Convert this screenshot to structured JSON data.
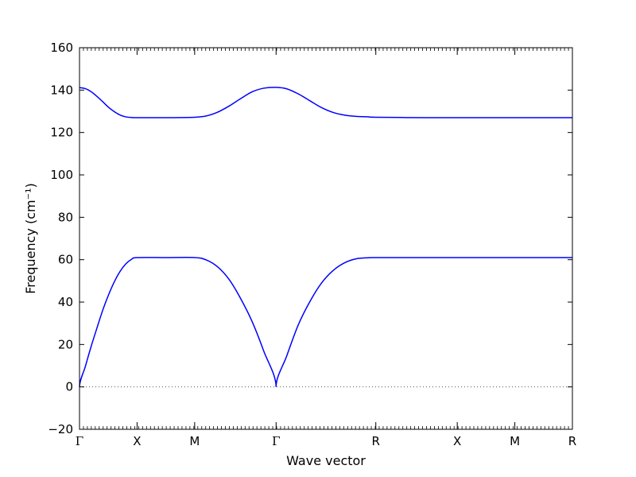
{
  "chart_data": {
    "type": "line",
    "xlabel": "Wave vector",
    "ylabel": "Frequency (cm⁻¹)",
    "ylim": [
      -20,
      160
    ],
    "y_ticks": [
      -20,
      0,
      20,
      40,
      60,
      80,
      100,
      120,
      140,
      160
    ],
    "x_ticks": [
      {
        "label": "Γ",
        "x": 0.0
      },
      {
        "label": "X",
        "x": 0.5
      },
      {
        "label": "M",
        "x": 1.0
      },
      {
        "label": "Γ",
        "x": 1.7071
      },
      {
        "label": "R",
        "x": 2.5731
      },
      {
        "label": "X",
        "x": 3.2802
      },
      {
        "label": "M",
        "x": 3.7802
      },
      {
        "label": "R",
        "x": 4.2802
      }
    ],
    "zero_line": true,
    "grid": false,
    "line_color": "#0000ff",
    "series": [
      {
        "x": [
          0.0,
          0.05,
          0.1,
          0.15,
          0.2,
          0.25,
          0.3,
          0.35,
          0.4,
          0.45,
          0.5,
          0.75,
          1.0,
          1.1,
          1.2,
          1.3,
          1.4,
          1.5,
          1.6,
          1.7071,
          1.8,
          1.9,
          2.0,
          2.1,
          2.2,
          2.3,
          2.4,
          2.5,
          2.5731,
          3.0,
          3.2802,
          3.5,
          3.7802,
          4.0,
          4.2802
        ],
        "values": [
          0,
          9.5,
          18.9,
          27.5,
          35.9,
          43.1,
          49.3,
          54.3,
          57.9,
          60.1,
          61.0,
          61.0,
          61.0,
          59.9,
          56.6,
          50.6,
          41.6,
          30.7,
          16.9,
          0,
          14.7,
          29.3,
          40.2,
          48.9,
          54.8,
          58.5,
          60.4,
          60.9,
          61.0,
          61.0,
          61.0,
          61.0,
          61.0,
          61.0,
          61.0
        ]
      },
      {
        "x": [
          0.0,
          0.05,
          0.1,
          0.15,
          0.2,
          0.25,
          0.3,
          0.35,
          0.4,
          0.45,
          0.5,
          0.75,
          1.0,
          1.1,
          1.2,
          1.3,
          1.4,
          1.5,
          1.6,
          1.7071,
          1.8,
          1.9,
          2.0,
          2.1,
          2.2,
          2.3,
          2.4,
          2.5,
          2.5731,
          3.0,
          3.2802,
          3.5,
          3.7802,
          4.0,
          4.2802
        ],
        "values": [
          141.2,
          140.7,
          139.3,
          137.1,
          134.6,
          132.0,
          129.9,
          128.3,
          127.4,
          127.1,
          127.0,
          127.0,
          127.2,
          127.8,
          129.6,
          132.5,
          136.0,
          139.2,
          140.9,
          141.3,
          140.6,
          138.2,
          135.0,
          131.8,
          129.5,
          128.2,
          127.6,
          127.4,
          127.2,
          127.0,
          127.0,
          127.0,
          127.0,
          127.0,
          127.0
        ]
      }
    ]
  }
}
